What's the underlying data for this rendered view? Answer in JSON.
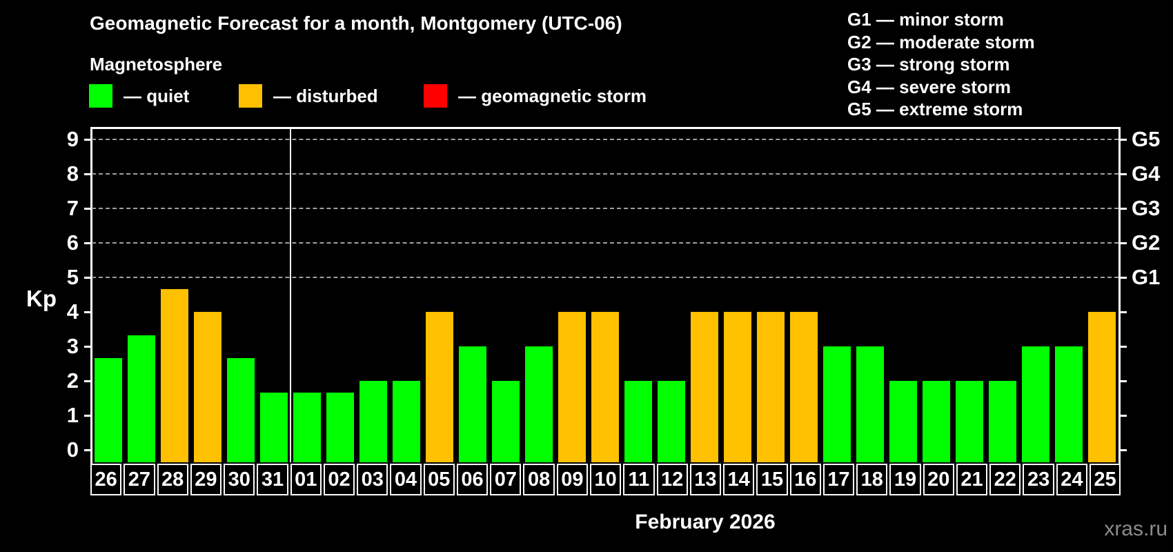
{
  "header": {
    "title": "Geomagnetic Forecast for a month, Montgomery (UTC-06)",
    "subtitle": "Magnetosphere"
  },
  "legend": {
    "items": [
      {
        "status": "quiet",
        "label": "— quiet",
        "color": "#00ff00"
      },
      {
        "status": "disturbed",
        "label": "— disturbed",
        "color": "#ffc000"
      },
      {
        "status": "storm",
        "label": "— geomagnetic storm",
        "color": "#ff0000"
      }
    ]
  },
  "storm_scale_legend": {
    "lines": [
      "G1 — minor storm",
      "G2 — moderate storm",
      "G3 — strong storm",
      "G4 — severe storm",
      "G5 — extreme storm"
    ]
  },
  "footer": {
    "month_label": "February 2026",
    "watermark": "xras.ru"
  },
  "chart_data": {
    "type": "bar",
    "title": "Geomagnetic Forecast for a month, Montgomery (UTC-06)",
    "ylabel": "Kp",
    "ylim": [
      0,
      9.3
    ],
    "yticks": [
      0,
      1,
      2,
      3,
      4,
      5,
      6,
      7,
      8,
      9
    ],
    "grid_kp_levels": [
      5,
      6,
      7,
      8,
      9
    ],
    "grid_style": "dashed",
    "right_axis_labels": [
      {
        "kp": 5,
        "label": "G1"
      },
      {
        "kp": 6,
        "label": "G2"
      },
      {
        "kp": 7,
        "label": "G3"
      },
      {
        "kp": 8,
        "label": "G4"
      },
      {
        "kp": 9,
        "label": "G5"
      }
    ],
    "status_colors": {
      "quiet": "#00ff00",
      "disturbed": "#ffc000",
      "storm": "#ff0000"
    },
    "month_separator_after_index": 6,
    "days": [
      {
        "label": "26",
        "kp": 2.67,
        "status": "quiet"
      },
      {
        "label": "27",
        "kp": 3.33,
        "status": "quiet"
      },
      {
        "label": "28",
        "kp": 4.67,
        "status": "disturbed"
      },
      {
        "label": "29",
        "kp": 4.0,
        "status": "disturbed"
      },
      {
        "label": "30",
        "kp": 2.67,
        "status": "quiet"
      },
      {
        "label": "31",
        "kp": 1.67,
        "status": "quiet"
      },
      {
        "label": "01",
        "kp": 1.67,
        "status": "quiet"
      },
      {
        "label": "02",
        "kp": 1.67,
        "status": "quiet"
      },
      {
        "label": "03",
        "kp": 2.0,
        "status": "quiet"
      },
      {
        "label": "04",
        "kp": 2.0,
        "status": "quiet"
      },
      {
        "label": "05",
        "kp": 4.0,
        "status": "disturbed"
      },
      {
        "label": "06",
        "kp": 3.0,
        "status": "quiet"
      },
      {
        "label": "07",
        "kp": 2.0,
        "status": "quiet"
      },
      {
        "label": "08",
        "kp": 3.0,
        "status": "quiet"
      },
      {
        "label": "09",
        "kp": 4.0,
        "status": "disturbed"
      },
      {
        "label": "10",
        "kp": 4.0,
        "status": "disturbed"
      },
      {
        "label": "11",
        "kp": 2.0,
        "status": "quiet"
      },
      {
        "label": "12",
        "kp": 2.0,
        "status": "quiet"
      },
      {
        "label": "13",
        "kp": 4.0,
        "status": "disturbed"
      },
      {
        "label": "14",
        "kp": 4.0,
        "status": "disturbed"
      },
      {
        "label": "15",
        "kp": 4.0,
        "status": "disturbed"
      },
      {
        "label": "16",
        "kp": 4.0,
        "status": "disturbed"
      },
      {
        "label": "17",
        "kp": 3.0,
        "status": "quiet"
      },
      {
        "label": "18",
        "kp": 3.0,
        "status": "quiet"
      },
      {
        "label": "19",
        "kp": 2.0,
        "status": "quiet"
      },
      {
        "label": "20",
        "kp": 2.0,
        "status": "quiet"
      },
      {
        "label": "21",
        "kp": 2.0,
        "status": "quiet"
      },
      {
        "label": "22",
        "kp": 2.0,
        "status": "quiet"
      },
      {
        "label": "23",
        "kp": 3.0,
        "status": "quiet"
      },
      {
        "label": "24",
        "kp": 3.0,
        "status": "quiet"
      },
      {
        "label": "25",
        "kp": 4.0,
        "status": "disturbed"
      }
    ]
  }
}
